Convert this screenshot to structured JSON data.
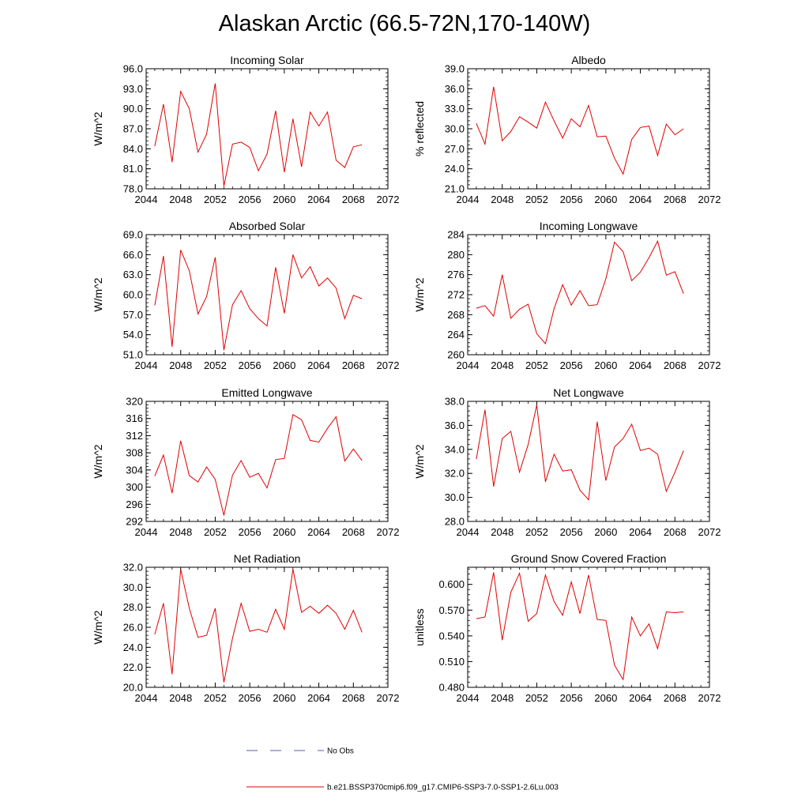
{
  "figure": {
    "title": "Alaskan Arctic (66.5-72N,170-140W)",
    "legend": {
      "obs_label": "No Obs",
      "obs_color": "#5a5ab4",
      "model_label": "b.e21.BSSP370cmip6.f09_g17.CMIP6-SSP3-7.0-SSP1-2.6Lu.003",
      "model_color": "#e00000"
    }
  },
  "chart_data": [
    {
      "type": "line",
      "title": "Incoming Solar",
      "ylabel": "W/m^2",
      "xlim": [
        2044,
        2072
      ],
      "ylim": [
        78,
        96
      ],
      "xticks": [
        2044,
        2048,
        2052,
        2056,
        2060,
        2064,
        2068,
        2072
      ],
      "yticks": [
        "78.0",
        "81.0",
        "84.0",
        "87.0",
        "90.0",
        "93.0",
        "96.0"
      ],
      "series": [
        {
          "x": [
            2045,
            2046,
            2047,
            2048,
            2049,
            2050,
            2051,
            2052,
            2053,
            2054,
            2055,
            2056,
            2057,
            2058,
            2059,
            2060,
            2061,
            2062,
            2063,
            2064,
            2065,
            2066,
            2067,
            2068,
            2069
          ],
          "y": [
            84.4,
            90.7,
            82.0,
            92.6,
            90.0,
            83.5,
            86.2,
            93.8,
            78.4,
            84.7,
            85.0,
            84.2,
            80.7,
            83.2,
            89.7,
            80.5,
            88.5,
            81.3,
            89.5,
            87.4,
            89.5,
            82.3,
            81.2,
            84.3,
            84.6
          ]
        }
      ]
    },
    {
      "type": "line",
      "title": "Albedo",
      "ylabel": "% reflected",
      "xlim": [
        2044,
        2072
      ],
      "ylim": [
        21,
        39
      ],
      "xticks": [
        2044,
        2048,
        2052,
        2056,
        2060,
        2064,
        2068,
        2072
      ],
      "yticks": [
        "21.0",
        "24.0",
        "27.0",
        "30.0",
        "33.0",
        "36.0",
        "39.0"
      ],
      "series": [
        {
          "x": [
            2045,
            2046,
            2047,
            2048,
            2049,
            2050,
            2051,
            2052,
            2053,
            2054,
            2055,
            2056,
            2057,
            2058,
            2059,
            2060,
            2061,
            2062,
            2063,
            2064,
            2065,
            2066,
            2067,
            2068,
            2069
          ],
          "y": [
            30.8,
            27.7,
            36.3,
            28.2,
            29.6,
            31.8,
            31.0,
            30.1,
            34.0,
            31.2,
            28.6,
            31.5,
            30.3,
            33.5,
            28.8,
            28.9,
            25.6,
            23.2,
            28.4,
            30.2,
            30.4,
            26.0,
            30.7,
            29.1,
            30.0
          ]
        }
      ]
    },
    {
      "type": "line",
      "title": "Absorbed Solar",
      "ylabel": "W/m^2",
      "xlim": [
        2044,
        2072
      ],
      "ylim": [
        51,
        69
      ],
      "xticks": [
        2044,
        2048,
        2052,
        2056,
        2060,
        2064,
        2068,
        2072
      ],
      "yticks": [
        "51.0",
        "54.0",
        "57.0",
        "60.0",
        "63.0",
        "66.0",
        "69.0"
      ],
      "series": [
        {
          "x": [
            2045,
            2046,
            2047,
            2048,
            2049,
            2050,
            2051,
            2052,
            2053,
            2054,
            2055,
            2056,
            2057,
            2058,
            2059,
            2060,
            2061,
            2062,
            2063,
            2064,
            2065,
            2066,
            2067,
            2068,
            2069
          ],
          "y": [
            58.4,
            65.8,
            52.2,
            66.7,
            63.6,
            57.1,
            59.7,
            65.6,
            51.7,
            58.5,
            60.6,
            57.9,
            56.4,
            55.3,
            64.1,
            57.2,
            66.0,
            62.5,
            64.2,
            61.3,
            62.5,
            61.0,
            56.4,
            59.9,
            59.4
          ]
        }
      ]
    },
    {
      "type": "line",
      "title": "Incoming Longwave",
      "ylabel": "W/m^2",
      "xlim": [
        2044,
        2072
      ],
      "ylim": [
        260,
        284
      ],
      "xticks": [
        2044,
        2048,
        2052,
        2056,
        2060,
        2064,
        2068,
        2072
      ],
      "yticks": [
        "260",
        "264",
        "268",
        "272",
        "276",
        "280",
        "284"
      ],
      "series": [
        {
          "x": [
            2045,
            2046,
            2047,
            2048,
            2049,
            2050,
            2051,
            2052,
            2053,
            2054,
            2055,
            2056,
            2057,
            2058,
            2059,
            2060,
            2061,
            2062,
            2063,
            2064,
            2065,
            2066,
            2067,
            2068,
            2069
          ],
          "y": [
            269.3,
            269.8,
            267.7,
            276.0,
            267.3,
            269.1,
            270.1,
            264.2,
            262.2,
            269.2,
            274.0,
            269.9,
            272.8,
            269.8,
            270.0,
            275.2,
            282.5,
            280.6,
            274.8,
            276.5,
            279.4,
            282.7,
            275.9,
            276.6,
            272.2
          ]
        }
      ]
    },
    {
      "type": "line",
      "title": "Emitted Longwave",
      "ylabel": "W/m^2",
      "xlim": [
        2044,
        2072
      ],
      "ylim": [
        292,
        320
      ],
      "xticks": [
        2044,
        2048,
        2052,
        2056,
        2060,
        2064,
        2068,
        2072
      ],
      "yticks": [
        "292",
        "296",
        "300",
        "304",
        "308",
        "312",
        "316",
        "320"
      ],
      "series": [
        {
          "x": [
            2045,
            2046,
            2047,
            2048,
            2049,
            2050,
            2051,
            2052,
            2053,
            2054,
            2055,
            2056,
            2057,
            2058,
            2059,
            2060,
            2061,
            2062,
            2063,
            2064,
            2065,
            2066,
            2067,
            2068,
            2069
          ],
          "y": [
            302.6,
            307.5,
            298.6,
            310.8,
            302.7,
            301.2,
            304.7,
            301.8,
            293.4,
            302.8,
            306.2,
            302.3,
            303.2,
            299.8,
            306.4,
            306.7,
            316.9,
            315.7,
            310.9,
            310.5,
            313.7,
            316.4,
            306.1,
            308.9,
            306.2
          ]
        }
      ]
    },
    {
      "type": "line",
      "title": "Net Longwave",
      "ylabel": "W/m^2",
      "xlim": [
        2044,
        2072
      ],
      "ylim": [
        28,
        38
      ],
      "xticks": [
        2044,
        2048,
        2052,
        2056,
        2060,
        2064,
        2068,
        2072
      ],
      "yticks": [
        "28.0",
        "30.0",
        "32.0",
        "34.0",
        "36.0",
        "38.0"
      ],
      "series": [
        {
          "x": [
            2045,
            2046,
            2047,
            2048,
            2049,
            2050,
            2051,
            2052,
            2053,
            2054,
            2055,
            2056,
            2057,
            2058,
            2059,
            2060,
            2061,
            2062,
            2063,
            2064,
            2065,
            2066,
            2067,
            2068,
            2069
          ],
          "y": [
            33.2,
            37.3,
            30.9,
            34.9,
            35.5,
            32.1,
            34.4,
            37.7,
            31.3,
            33.6,
            32.2,
            32.3,
            30.6,
            29.8,
            36.3,
            31.4,
            34.2,
            34.9,
            36.1,
            33.9,
            34.1,
            33.6,
            30.5,
            32.1,
            33.9
          ]
        }
      ]
    },
    {
      "type": "line",
      "title": "Net Radiation",
      "ylabel": "W/m^2",
      "xlim": [
        2044,
        2072
      ],
      "ylim": [
        20,
        32
      ],
      "xticks": [
        2044,
        2048,
        2052,
        2056,
        2060,
        2064,
        2068,
        2072
      ],
      "yticks": [
        "20.0",
        "22.0",
        "24.0",
        "26.0",
        "28.0",
        "30.0",
        "32.0"
      ],
      "series": [
        {
          "x": [
            2045,
            2046,
            2047,
            2048,
            2049,
            2050,
            2051,
            2052,
            2053,
            2054,
            2055,
            2056,
            2057,
            2058,
            2059,
            2060,
            2061,
            2062,
            2063,
            2064,
            2065,
            2066,
            2067,
            2068,
            2069
          ],
          "y": [
            25.3,
            28.4,
            21.3,
            31.8,
            27.9,
            25.0,
            25.2,
            27.9,
            20.5,
            24.9,
            28.4,
            25.6,
            25.8,
            25.5,
            27.8,
            25.8,
            31.8,
            27.5,
            28.1,
            27.4,
            28.2,
            27.4,
            25.8,
            27.7,
            25.5
          ]
        }
      ]
    },
    {
      "type": "line",
      "title": "Ground Snow Covered Fraction",
      "ylabel": "unitless",
      "xlim": [
        2044,
        2072
      ],
      "ylim": [
        0.48,
        0.62
      ],
      "xticks": [
        2044,
        2048,
        2052,
        2056,
        2060,
        2064,
        2068,
        2072
      ],
      "yticks": [
        "0.480",
        "0.510",
        "0.540",
        "0.570",
        "0.600"
      ],
      "yticks_values": [
        0.48,
        0.51,
        0.54,
        0.57,
        0.6
      ],
      "series": [
        {
          "x": [
            2045,
            2046,
            2047,
            2048,
            2049,
            2050,
            2051,
            2052,
            2053,
            2054,
            2055,
            2056,
            2057,
            2058,
            2059,
            2060,
            2061,
            2062,
            2063,
            2064,
            2065,
            2066,
            2067,
            2068,
            2069
          ],
          "y": [
            0.56,
            0.562,
            0.614,
            0.535,
            0.591,
            0.613,
            0.557,
            0.566,
            0.611,
            0.58,
            0.564,
            0.603,
            0.566,
            0.611,
            0.559,
            0.558,
            0.506,
            0.489,
            0.562,
            0.54,
            0.554,
            0.525,
            0.568,
            0.567,
            0.568
          ]
        }
      ]
    }
  ]
}
